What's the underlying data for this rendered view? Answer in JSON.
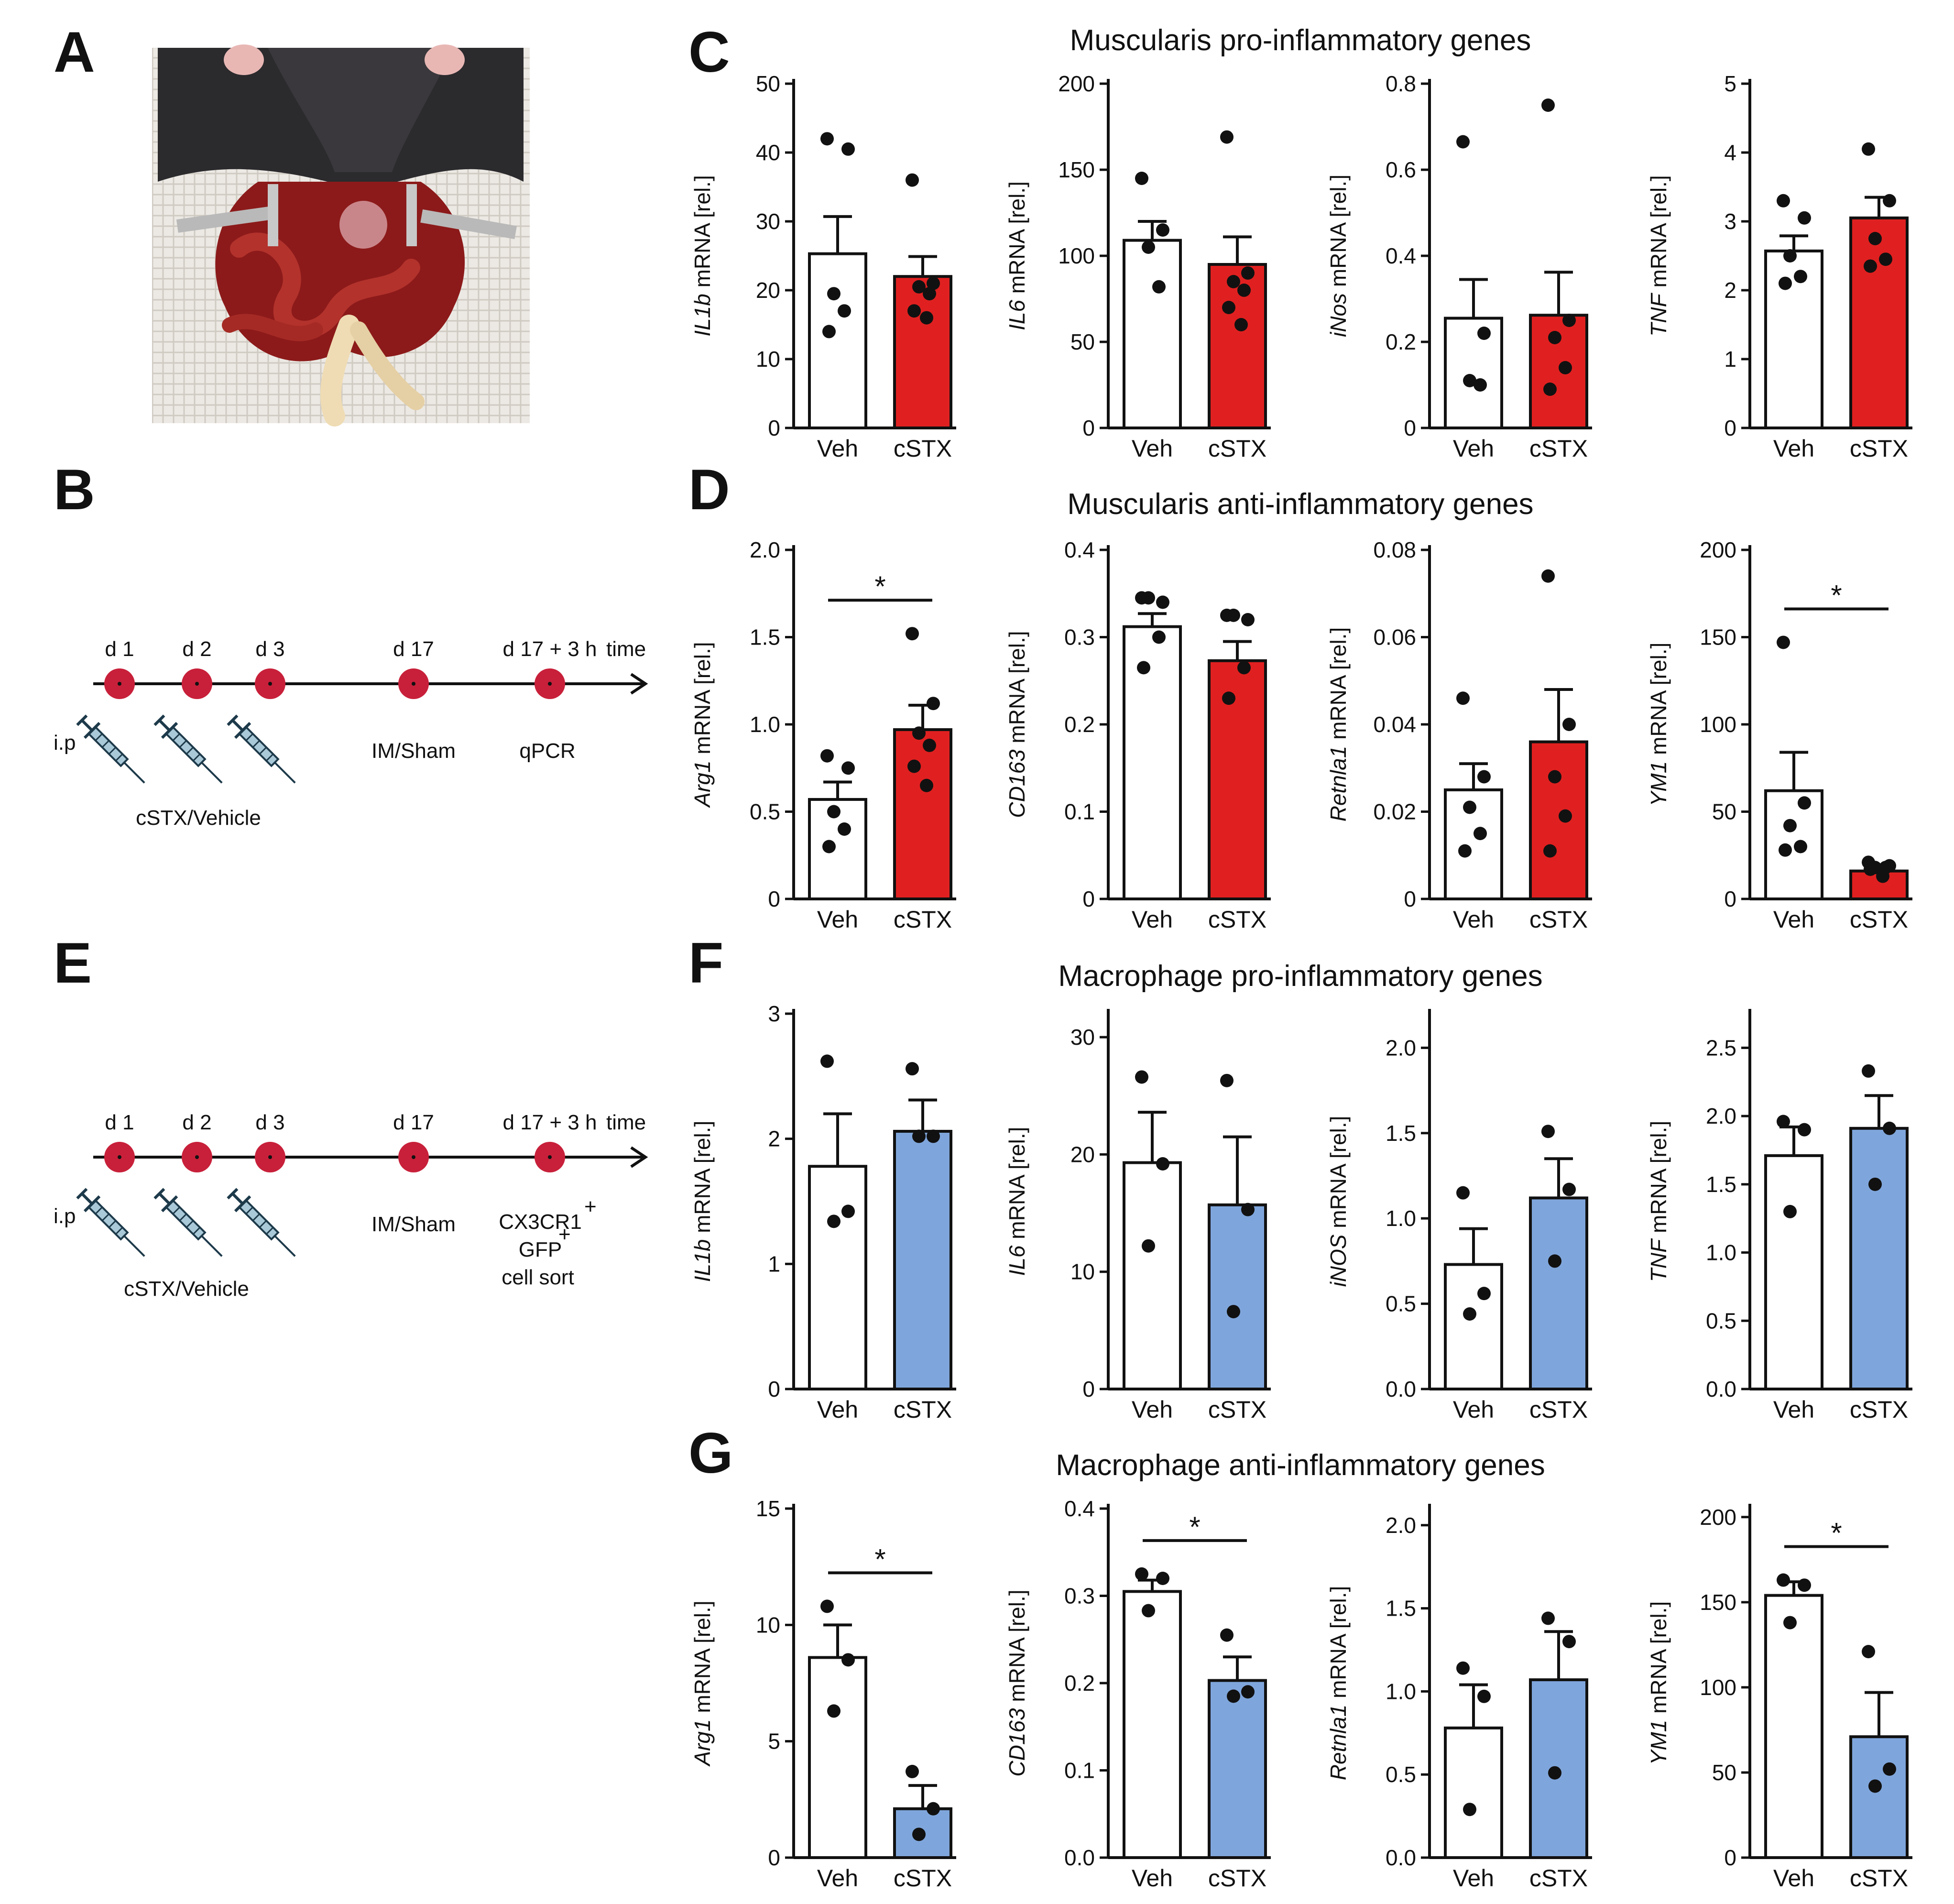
{
  "colors": {
    "veh": "#ffffff",
    "cstx_muscularis": "#e02020",
    "cstx_macrophage": "#7fa6dc",
    "timeline_dot": "#c8203a",
    "syringe_body": "#a9c9d8"
  },
  "panels": {
    "A": "A",
    "B": "B",
    "C": "C",
    "D": "D",
    "E": "E",
    "F": "F",
    "G": "G"
  },
  "photo": {
    "description_icon": "mouse-surgery-photo-icon"
  },
  "timeline_B": {
    "days": [
      "d 1",
      "d 2",
      "d 3",
      "d 17",
      "d 17 + 3 h"
    ],
    "axis_label": "time",
    "injection": "i.p",
    "treatment": "cSTX/Vehicle",
    "surgery": "IM/Sham",
    "readout": "qPCR"
  },
  "timeline_E": {
    "days": [
      "d 1",
      "d 2",
      "d 3",
      "d 17",
      "d 17 + 3 h"
    ],
    "axis_label": "time",
    "injection": "i.p",
    "treatment": "cSTX/Vehicle",
    "surgery": "IM/Sham",
    "readout_line1": "CX3CR1",
    "readout_line1_sup": "+",
    "readout_line2": "GFP",
    "readout_line2_sup": "+",
    "readout_line3": "cell sort"
  },
  "row_titles": {
    "C": "Muscularis pro-inflammatory genes",
    "D": "Muscularis anti-inflammatory genes",
    "F": "Macrophage pro-inflammatory genes",
    "G": "Macrophage anti-inflammatory genes"
  },
  "chart_data": [
    {
      "panel": "C",
      "type": "bar",
      "gene": "IL1b",
      "ylabel_suffix": " mRNA [rel.]",
      "categories": [
        "Veh",
        "cSTX"
      ],
      "means": [
        25.3,
        22.0
      ],
      "sem": [
        5.4,
        2.9
      ],
      "points": [
        [
          42,
          40.5,
          19.5,
          17,
          14
        ],
        [
          36,
          21,
          20.5,
          19.5,
          17,
          16
        ]
      ],
      "ylim": [
        0,
        50
      ],
      "yticks": [
        "0",
        "10",
        "20",
        "30",
        "40",
        "50"
      ],
      "cstx_color": "muscularis",
      "significance": ""
    },
    {
      "panel": "C",
      "type": "bar",
      "gene": "IL6",
      "ylabel_suffix": " mRNA [rel.]",
      "categories": [
        "Veh",
        "cSTX"
      ],
      "means": [
        109,
        95
      ],
      "sem": [
        11,
        16
      ],
      "points": [
        [
          145,
          115,
          105,
          82
        ],
        [
          169,
          90,
          85,
          80,
          70,
          60
        ]
      ],
      "ylim": [
        0,
        200
      ],
      "yticks": [
        "0",
        "50",
        "100",
        "150",
        "200"
      ],
      "cstx_color": "muscularis",
      "significance": ""
    },
    {
      "panel": "C",
      "type": "bar",
      "gene": "iNos",
      "ylabel_suffix": " mRNA [rel.]",
      "categories": [
        "Veh",
        "cSTX"
      ],
      "means": [
        0.255,
        0.262
      ],
      "sem": [
        0.09,
        0.1
      ],
      "points": [
        [
          0.665,
          0.22,
          0.11,
          0.1
        ],
        [
          0.75,
          0.25,
          0.21,
          0.14,
          0.09
        ]
      ],
      "ylim": [
        0,
        0.8
      ],
      "yticks": [
        "0",
        "0.2",
        "0.4",
        "0.6",
        "0.8"
      ],
      "cstx_color": "muscularis",
      "significance": ""
    },
    {
      "panel": "C",
      "type": "bar",
      "gene": "TNF",
      "ylabel_suffix": " mRNA [rel.]",
      "categories": [
        "Veh",
        "cSTX"
      ],
      "means": [
        2.57,
        3.05
      ],
      "sem": [
        0.22,
        0.3
      ],
      "points": [
        [
          3.3,
          3.05,
          2.5,
          2.2,
          2.1
        ],
        [
          4.05,
          3.3,
          2.75,
          2.45,
          2.35
        ]
      ],
      "ylim": [
        0,
        5
      ],
      "yticks": [
        "0",
        "1",
        "2",
        "3",
        "4",
        "5"
      ],
      "cstx_color": "muscularis",
      "significance": ""
    },
    {
      "panel": "D",
      "type": "bar",
      "gene": "Arg1",
      "ylabel_suffix": " mRNA [rel.]",
      "categories": [
        "Veh",
        "cSTX"
      ],
      "means": [
        0.57,
        0.97
      ],
      "sem": [
        0.1,
        0.14
      ],
      "points": [
        [
          0.82,
          0.75,
          0.5,
          0.4,
          0.3
        ],
        [
          1.52,
          1.12,
          0.95,
          0.88,
          0.76,
          0.65
        ]
      ],
      "ylim": [
        0,
        2.0
      ],
      "yticks": [
        "0",
        "0.5",
        "1.0",
        "1.5",
        "2.0"
      ],
      "cstx_color": "muscularis",
      "significance": "*"
    },
    {
      "panel": "D",
      "type": "bar",
      "gene": "CD163",
      "ylabel_suffix": " mRNA [rel.]",
      "categories": [
        "Veh",
        "cSTX"
      ],
      "means": [
        0.312,
        0.273
      ],
      "sem": [
        0.015,
        0.022
      ],
      "points": [
        [
          0.345,
          0.34,
          0.345,
          0.3,
          0.265
        ],
        [
          0.325,
          0.32,
          0.325,
          0.265,
          0.23
        ]
      ],
      "ylim": [
        0,
        0.4
      ],
      "yticks": [
        "0",
        "0.1",
        "0.2",
        "0.3",
        "0.4"
      ],
      "cstx_color": "muscularis",
      "significance": ""
    },
    {
      "panel": "D",
      "type": "bar",
      "gene": "Retnla1",
      "ylabel_suffix": " mRNA [rel.]",
      "categories": [
        "Veh",
        "cSTX"
      ],
      "means": [
        0.025,
        0.036
      ],
      "sem": [
        0.006,
        0.012
      ],
      "points": [
        [
          0.046,
          0.028,
          0.021,
          0.015,
          0.011
        ],
        [
          0.074,
          0.04,
          0.028,
          0.019,
          0.011
        ]
      ],
      "ylim": [
        0,
        0.08
      ],
      "yticks": [
        "0",
        "0.02",
        "0.04",
        "0.06",
        "0.08"
      ],
      "cstx_color": "muscularis",
      "significance": ""
    },
    {
      "panel": "D",
      "type": "bar",
      "gene": "YM1",
      "ylabel_suffix": " mRNA [rel.]",
      "categories": [
        "Veh",
        "cSTX"
      ],
      "means": [
        62,
        16
      ],
      "sem": [
        22,
        2
      ],
      "points": [
        [
          147,
          55,
          42,
          30,
          28
        ],
        [
          21,
          19,
          18,
          18,
          17,
          13
        ]
      ],
      "ylim": [
        0,
        200
      ],
      "yticks": [
        "0",
        "50",
        "100",
        "150",
        "200"
      ],
      "cstx_color": "muscularis",
      "significance": "*"
    },
    {
      "panel": "F",
      "type": "bar",
      "gene": "IL1b",
      "ylabel_suffix": " mRNA [rel.]",
      "categories": [
        "Veh",
        "cSTX"
      ],
      "means": [
        1.78,
        2.06
      ],
      "sem": [
        0.42,
        0.25
      ],
      "points": [
        [
          2.62,
          1.42,
          1.34
        ],
        [
          2.56,
          2.02,
          2.02
        ]
      ],
      "ylim": [
        0,
        3
      ],
      "yticks": [
        "0",
        "1",
        "2",
        "3"
      ],
      "cstx_color": "macrophage",
      "significance": ""
    },
    {
      "panel": "F",
      "type": "bar",
      "gene": "IL6",
      "ylabel_suffix": " mRNA [rel.]",
      "categories": [
        "Veh",
        "cSTX"
      ],
      "means": [
        19.3,
        15.7
      ],
      "sem": [
        4.3,
        5.8
      ],
      "points": [
        [
          26.6,
          19.2,
          12.2
        ],
        [
          26.3,
          15.3,
          6.6
        ]
      ],
      "ylim": [
        0,
        32
      ],
      "yticks": [
        "0",
        "10",
        "20",
        "30"
      ],
      "ytick_values": [
        0,
        10,
        20,
        30
      ],
      "cstx_color": "macrophage",
      "significance": ""
    },
    {
      "panel": "F",
      "type": "bar",
      "gene": "iNOS",
      "ylabel_suffix": " mRNA [rel.]",
      "categories": [
        "Veh",
        "cSTX"
      ],
      "means": [
        0.73,
        1.12
      ],
      "sem": [
        0.21,
        0.23
      ],
      "points": [
        [
          1.15,
          0.56,
          0.44
        ],
        [
          1.51,
          1.17,
          0.75
        ]
      ],
      "ylim": [
        0,
        2.2
      ],
      "yticks": [
        "0.0",
        "0.5",
        "1.0",
        "1.5",
        "2.0"
      ],
      "ytick_values": [
        0,
        0.5,
        1.0,
        1.5,
        2.0
      ],
      "cstx_color": "macrophage",
      "significance": ""
    },
    {
      "panel": "F",
      "type": "bar",
      "gene": "TNF",
      "ylabel_suffix": " mRNA [rel.]",
      "categories": [
        "Veh",
        "cSTX"
      ],
      "means": [
        1.71,
        1.91
      ],
      "sem": [
        0.21,
        0.24
      ],
      "points": [
        [
          1.96,
          1.9,
          1.3
        ],
        [
          2.33,
          1.91,
          1.5
        ]
      ],
      "ylim": [
        0,
        2.75
      ],
      "yticks": [
        "0.0",
        "0.5",
        "1.0",
        "1.5",
        "2.0",
        "2.5"
      ],
      "ytick_values": [
        0,
        0.5,
        1.0,
        1.5,
        2.0,
        2.5
      ],
      "cstx_color": "macrophage",
      "significance": ""
    },
    {
      "panel": "G",
      "type": "bar",
      "gene": "Arg1",
      "ylabel_suffix": " mRNA [rel.]",
      "categories": [
        "Veh",
        "cSTX"
      ],
      "means": [
        8.6,
        2.1
      ],
      "sem": [
        1.4,
        1.0
      ],
      "points": [
        [
          10.8,
          8.5,
          6.3
        ],
        [
          3.7,
          2.1,
          1.0
        ]
      ],
      "ylim": [
        0,
        15
      ],
      "yticks": [
        "0",
        "5",
        "10",
        "15"
      ],
      "cstx_color": "macrophage",
      "significance": "*"
    },
    {
      "panel": "G",
      "type": "bar",
      "gene": "CD163",
      "ylabel_suffix": " mRNA [rel.]",
      "categories": [
        "Veh",
        "cSTX"
      ],
      "means": [
        0.305,
        0.203
      ],
      "sem": [
        0.013,
        0.027
      ],
      "points": [
        [
          0.325,
          0.32,
          0.283
        ],
        [
          0.255,
          0.19,
          0.185
        ]
      ],
      "ylim": [
        0,
        0.4
      ],
      "yticks": [
        "0.0",
        "0.1",
        "0.2",
        "0.3",
        "0.4"
      ],
      "cstx_color": "macrophage",
      "significance": "*"
    },
    {
      "panel": "G",
      "type": "bar",
      "gene": "Retnla1",
      "ylabel_suffix": " mRNA [rel.]",
      "categories": [
        "Veh",
        "cSTX"
      ],
      "means": [
        0.78,
        1.07
      ],
      "sem": [
        0.26,
        0.29
      ],
      "points": [
        [
          1.14,
          0.97,
          0.29
        ],
        [
          1.44,
          1.3,
          0.51
        ]
      ],
      "ylim": [
        0,
        2.1
      ],
      "yticks": [
        "0.0",
        "0.5",
        "1.0",
        "1.5",
        "2.0"
      ],
      "ytick_values": [
        0,
        0.5,
        1.0,
        1.5,
        2.0
      ],
      "cstx_color": "macrophage",
      "significance": ""
    },
    {
      "panel": "G",
      "type": "bar",
      "gene": "YM1",
      "ylabel_suffix": " mRNA [rel.]",
      "categories": [
        "Veh",
        "cSTX"
      ],
      "means": [
        154,
        71
      ],
      "sem": [
        8,
        26
      ],
      "points": [
        [
          163,
          160,
          138
        ],
        [
          121,
          52,
          42
        ]
      ],
      "ylim": [
        0,
        205
      ],
      "yticks": [
        "0",
        "50",
        "100",
        "150",
        "200"
      ],
      "ytick_values": [
        0,
        50,
        100,
        150,
        200
      ],
      "cstx_color": "macrophage",
      "significance": "*"
    }
  ]
}
